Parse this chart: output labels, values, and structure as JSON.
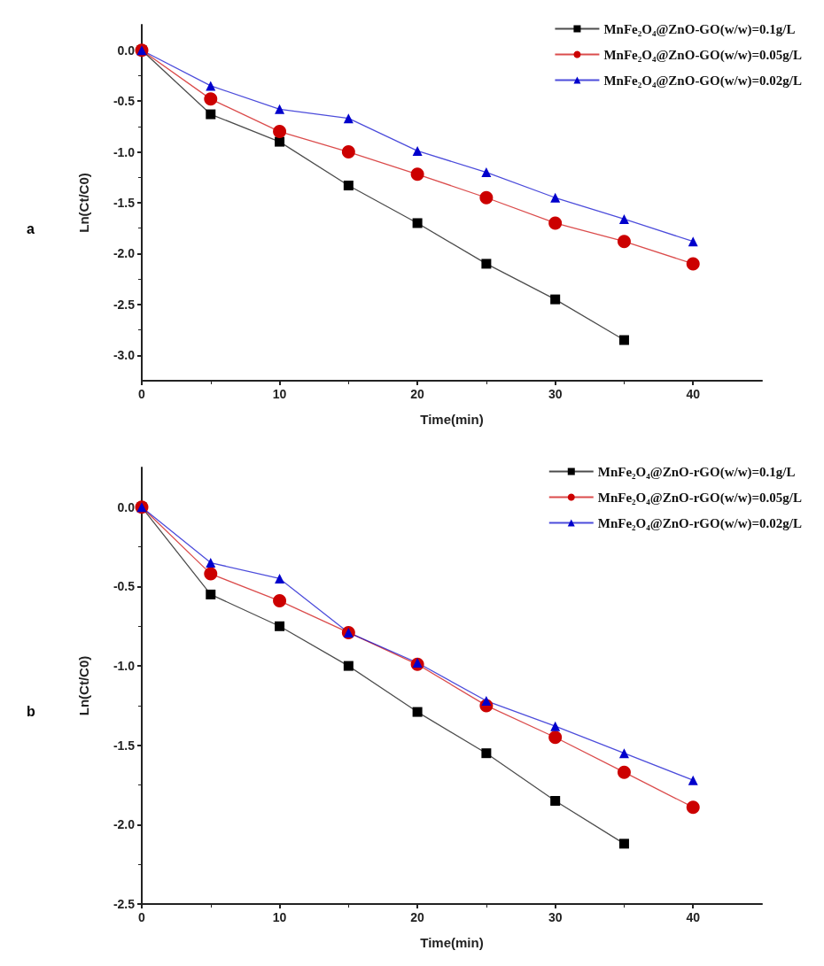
{
  "chart_data": [
    {
      "type": "line",
      "annotations": [
        "a"
      ],
      "xlabel": "Time(min)",
      "ylabel": "Ln(Ct/C0)",
      "x": [
        0,
        5,
        10,
        15,
        20,
        25,
        30,
        35,
        40
      ],
      "xlim": [
        0,
        45
      ],
      "xticks": [
        0,
        10,
        20,
        30,
        40
      ],
      "ylim": [
        -3.25,
        0.25
      ],
      "yticks": [
        {
          "value": 0,
          "label": "0.0"
        },
        -0.5,
        {
          "value": -1,
          "label": "-1.0"
        },
        -1.5,
        {
          "value": -2,
          "label": "-2.0"
        },
        -2.5,
        {
          "value": -3,
          "label": "-3.0"
        }
      ],
      "legend": "top right",
      "grid": false,
      "series": [
        {
          "name": "MnFe₂O₄@ZnO-GO(w/w)=0.1g/L",
          "color": "#000000",
          "marker": "square",
          "values": [
            0,
            -0.63,
            -0.9,
            -1.33,
            -1.7,
            -2.1,
            -2.45,
            -2.85,
            null
          ]
        },
        {
          "name": "MnFe₂O₄@ZnO-GO(w/w)=0.05g/L",
          "color": "#cc0000",
          "marker": "circle",
          "values": [
            0,
            -0.48,
            -0.8,
            -1.0,
            -1.22,
            -1.45,
            -1.7,
            -1.88,
            -2.1
          ]
        },
        {
          "name": "MnFe₂O₄@ZnO-GO(w/w)=0.02g/L",
          "color": "#0000cc",
          "marker": "triangle",
          "values": [
            0,
            -0.35,
            -0.58,
            -0.67,
            -0.99,
            -1.2,
            -1.45,
            -1.66,
            -1.88
          ]
        }
      ]
    },
    {
      "type": "line",
      "annotations": [
        "b"
      ],
      "xlabel": "Time(min)",
      "ylabel": "Ln(Ct/C0)",
      "x": [
        0,
        5,
        10,
        15,
        20,
        25,
        30,
        35,
        40
      ],
      "xlim": [
        0,
        45
      ],
      "xticks": [
        0,
        10,
        20,
        30,
        40
      ],
      "ylim": [
        -2.5,
        0.25
      ],
      "yticks": [
        {
          "value": 0,
          "label": "0.0"
        },
        -0.5,
        {
          "value": -1,
          "label": "-1.0"
        },
        -1.5,
        {
          "value": -2,
          "label": "-2.0"
        },
        -2.5
      ],
      "legend": "top right",
      "grid": false,
      "series": [
        {
          "name": "MnFe₂O₄@ZnO-rGO(w/w)=0.1g/L",
          "color": "#000000",
          "marker": "square",
          "values": [
            0,
            -0.55,
            -0.75,
            -1.0,
            -1.29,
            -1.55,
            -1.85,
            -2.12,
            null
          ]
        },
        {
          "name": "MnFe₂O₄@ZnO-rGO(w/w)=0.05g/L",
          "color": "#cc0000",
          "marker": "circle",
          "values": [
            0,
            -0.42,
            -0.59,
            -0.79,
            -0.99,
            -1.25,
            -1.45,
            -1.67,
            -1.89
          ]
        },
        {
          "name": "MnFe₂O₄@ZnO-rGO(w/w)=0.02g/L",
          "color": "#0000cc",
          "marker": "triangle",
          "values": [
            0,
            -0.35,
            -0.45,
            -0.79,
            -0.98,
            -1.22,
            -1.38,
            -1.55,
            -1.72
          ]
        }
      ]
    }
  ]
}
